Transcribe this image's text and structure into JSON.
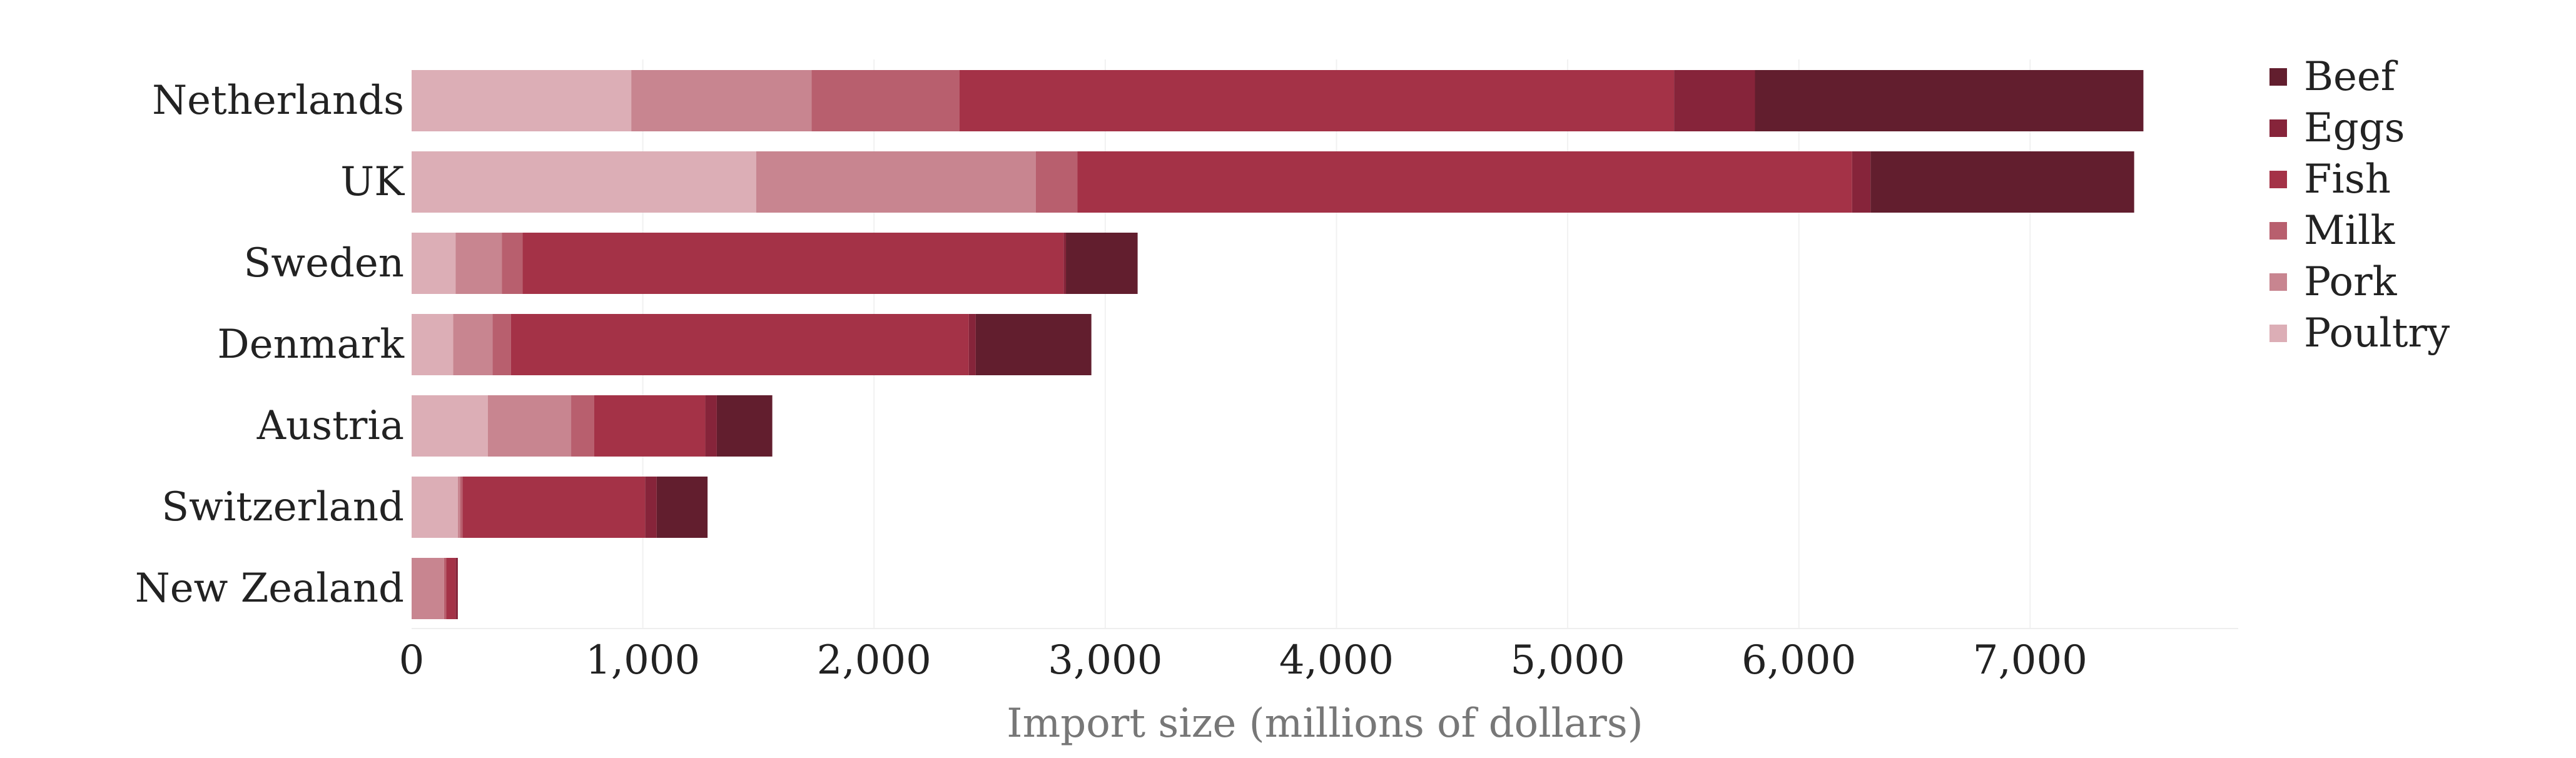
{
  "chart_data": {
    "type": "bar",
    "orientation": "horizontal",
    "stacked": true,
    "categories": [
      "Netherlands",
      "UK",
      "Sweden",
      "Denmark",
      "Austria",
      "Switzerland",
      "New Zealand"
    ],
    "series": [
      {
        "name": "Poultry",
        "color": "#dcaeb6",
        "values": [
          950,
          1490,
          190,
          180,
          330,
          200,
          0
        ]
      },
      {
        "name": "Pork",
        "color": "#c88590",
        "values": [
          780,
          1210,
          200,
          170,
          360,
          10,
          140
        ]
      },
      {
        "name": "Milk",
        "color": "#b85f6e",
        "values": [
          640,
          180,
          90,
          80,
          100,
          10,
          10
        ]
      },
      {
        "name": "Fish",
        "color": "#a43247",
        "values": [
          3090,
          3350,
          2340,
          1980,
          480,
          790,
          40
        ]
      },
      {
        "name": "Eggs",
        "color": "#86243a",
        "values": [
          350,
          80,
          10,
          30,
          50,
          50,
          10
        ]
      },
      {
        "name": "Beef",
        "color": "#621e2e",
        "values": [
          1680,
          1140,
          310,
          500,
          240,
          220,
          0
        ]
      }
    ],
    "legend_order": [
      "Beef",
      "Eggs",
      "Fish",
      "Milk",
      "Pork",
      "Poultry"
    ],
    "legend_position": "right",
    "xlabel": "Import size (millions of dollars)",
    "ylabel": "",
    "xlim": [
      0,
      7900
    ],
    "xticks": [
      0,
      1000,
      2000,
      3000,
      4000,
      5000,
      6000,
      7000
    ],
    "xtick_labels": [
      "0",
      "1,000",
      "2,000",
      "3,000",
      "4,000",
      "5,000",
      "6,000",
      "7,000"
    ],
    "grid": "vertical, very faint"
  }
}
